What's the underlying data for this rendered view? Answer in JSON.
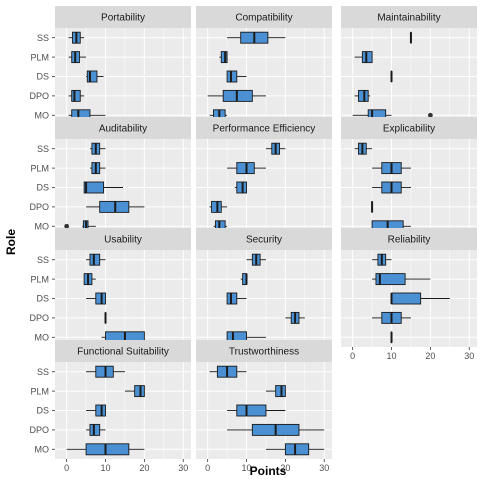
{
  "chart_data": {
    "type": "boxplot",
    "xlabel": "Points",
    "ylabel": "Role",
    "xlim": [
      -3,
      32
    ],
    "xticks": [
      "0",
      "10",
      "20",
      "30"
    ],
    "roles": [
      "SS",
      "PLM",
      "DS",
      "DPO",
      "MO"
    ],
    "colors": {
      "panel_bg": "#ebebeb",
      "strip_bg": "#d9d9d9",
      "grid": "#ffffff",
      "box_fill": "#4a90d2",
      "box_stroke": "#1a1a1a"
    },
    "facets": [
      {
        "name": "Portability",
        "boxes": [
          {
            "role": "SS",
            "min": 0.5,
            "q1": 1.5,
            "median": 2.5,
            "q3": 3.5,
            "max": 4.5,
            "outliers": []
          },
          {
            "role": "PLM",
            "min": 0.5,
            "q1": 1.3,
            "median": 2.2,
            "q3": 3.3,
            "max": 5.0,
            "outliers": []
          },
          {
            "role": "DS",
            "min": 5.0,
            "q1": 5.3,
            "median": 6.0,
            "q3": 7.8,
            "max": 9.5,
            "outliers": []
          },
          {
            "role": "DPO",
            "min": 0.5,
            "q1": 1.3,
            "median": 2.0,
            "q3": 3.5,
            "max": 4.5,
            "outliers": []
          },
          {
            "role": "MO",
            "min": 0.5,
            "q1": 1.3,
            "median": 3.0,
            "q3": 6.0,
            "max": 10.0,
            "outliers": []
          }
        ]
      },
      {
        "name": "Compatibility",
        "boxes": [
          {
            "role": "SS",
            "min": 5.0,
            "q1": 8.5,
            "median": 12.0,
            "q3": 15.5,
            "max": 20.0,
            "outliers": []
          },
          {
            "role": "PLM",
            "min": 3.0,
            "q1": 3.5,
            "median": 4.5,
            "q3": 5.0,
            "max": 5.0,
            "outliers": []
          },
          {
            "role": "DS",
            "min": 5.0,
            "q1": 5.0,
            "median": 6.0,
            "q3": 7.5,
            "max": 10.0,
            "outliers": []
          },
          {
            "role": "DPO",
            "min": 0.0,
            "q1": 4.0,
            "median": 7.5,
            "q3": 11.5,
            "max": 15.0,
            "outliers": []
          },
          {
            "role": "MO",
            "min": 0.5,
            "q1": 1.5,
            "median": 3.0,
            "q3": 4.5,
            "max": 5.0,
            "outliers": []
          }
        ]
      },
      {
        "name": "Maintainability",
        "boxes": [
          {
            "role": "SS",
            "min": 15.0,
            "q1": 15.0,
            "median": 15.0,
            "q3": 15.0,
            "max": 15.0,
            "outliers": []
          },
          {
            "role": "PLM",
            "min": 0.5,
            "q1": 2.5,
            "median": 3.5,
            "q3": 5.0,
            "max": 5.0,
            "outliers": []
          },
          {
            "role": "DS",
            "min": 10.0,
            "q1": 10.0,
            "median": 10.0,
            "q3": 10.0,
            "max": 10.0,
            "outliers": []
          },
          {
            "role": "DPO",
            "min": 0.5,
            "q1": 1.5,
            "median": 3.0,
            "q3": 4.0,
            "max": 4.5,
            "outliers": []
          },
          {
            "role": "MO",
            "min": 0.0,
            "q1": 4.0,
            "median": 5.0,
            "q3": 8.5,
            "max": 10.0,
            "outliers": [
              20
            ]
          }
        ]
      },
      {
        "name": "Auditability",
        "boxes": [
          {
            "role": "SS",
            "min": 6.0,
            "q1": 6.5,
            "median": 7.5,
            "q3": 8.5,
            "max": 10.0,
            "outliers": []
          },
          {
            "role": "PLM",
            "min": 6.0,
            "q1": 6.5,
            "median": 7.5,
            "q3": 8.5,
            "max": 10.0,
            "outliers": []
          },
          {
            "role": "DS",
            "min": 4.5,
            "q1": 4.5,
            "median": 5.0,
            "q3": 9.5,
            "max": 14.5,
            "outliers": []
          },
          {
            "role": "DPO",
            "min": 5.0,
            "q1": 8.5,
            "median": 12.5,
            "q3": 16.0,
            "max": 20.0,
            "outliers": []
          },
          {
            "role": "MO",
            "min": 4.0,
            "q1": 4.3,
            "median": 5.0,
            "q3": 5.5,
            "max": 7.5,
            "outliers": [
              0
            ]
          }
        ]
      },
      {
        "name": "Performance Efficiency",
        "boxes": [
          {
            "role": "SS",
            "min": 15.0,
            "q1": 16.5,
            "median": 17.5,
            "q3": 18.5,
            "max": 20.0,
            "outliers": []
          },
          {
            "role": "PLM",
            "min": 5.0,
            "q1": 7.5,
            "median": 10.0,
            "q3": 12.0,
            "max": 15.0,
            "outliers": []
          },
          {
            "role": "DS",
            "min": 7.0,
            "q1": 7.5,
            "median": 9.0,
            "q3": 10.0,
            "max": 10.0,
            "outliers": []
          },
          {
            "role": "DPO",
            "min": 0.5,
            "q1": 1.0,
            "median": 2.5,
            "q3": 3.5,
            "max": 5.0,
            "outliers": []
          },
          {
            "role": "MO",
            "min": 1.5,
            "q1": 2.0,
            "median": 3.0,
            "q3": 4.5,
            "max": 5.0,
            "outliers": []
          }
        ]
      },
      {
        "name": "Explicability",
        "boxes": [
          {
            "role": "SS",
            "min": 0.5,
            "q1": 1.5,
            "median": 2.5,
            "q3": 3.5,
            "max": 5.0,
            "outliers": []
          },
          {
            "role": "PLM",
            "min": 5.0,
            "q1": 7.5,
            "median": 10.0,
            "q3": 12.5,
            "max": 15.0,
            "outliers": []
          },
          {
            "role": "DS",
            "min": 5.0,
            "q1": 7.5,
            "median": 10.0,
            "q3": 12.5,
            "max": 15.0,
            "outliers": []
          },
          {
            "role": "DPO",
            "min": 5.0,
            "q1": 5.0,
            "median": 5.0,
            "q3": 5.0,
            "max": 5.0,
            "outliers": []
          },
          {
            "role": "MO",
            "min": 5.0,
            "q1": 5.0,
            "median": 9.0,
            "q3": 13.0,
            "max": 15.0,
            "outliers": []
          }
        ]
      },
      {
        "name": "Usability",
        "boxes": [
          {
            "role": "SS",
            "min": 5.0,
            "q1": 6.0,
            "median": 7.0,
            "q3": 8.5,
            "max": 10.0,
            "outliers": []
          },
          {
            "role": "PLM",
            "min": 4.5,
            "q1": 4.5,
            "median": 5.5,
            "q3": 6.5,
            "max": 7.5,
            "outliers": []
          },
          {
            "role": "DS",
            "min": 5.0,
            "q1": 7.5,
            "median": 9.0,
            "q3": 10.0,
            "max": 10.0,
            "outliers": []
          },
          {
            "role": "DPO",
            "min": 10.0,
            "q1": 10.0,
            "median": 10.0,
            "q3": 10.0,
            "max": 10.0,
            "outliers": []
          },
          {
            "role": "MO",
            "min": 9.0,
            "q1": 10.0,
            "median": 15.0,
            "q3": 20.0,
            "max": 20.0,
            "outliers": []
          }
        ]
      },
      {
        "name": "Security",
        "boxes": [
          {
            "role": "SS",
            "min": 10.0,
            "q1": 11.5,
            "median": 12.5,
            "q3": 13.5,
            "max": 15.0,
            "outliers": []
          },
          {
            "role": "PLM",
            "min": 8.5,
            "q1": 9.0,
            "median": 10.0,
            "q3": 10.0,
            "max": 10.0,
            "outliers": []
          },
          {
            "role": "DS",
            "min": 5.0,
            "q1": 5.0,
            "median": 6.0,
            "q3": 7.5,
            "max": 10.0,
            "outliers": []
          },
          {
            "role": "DPO",
            "min": 20.0,
            "q1": 21.5,
            "median": 22.5,
            "q3": 23.5,
            "max": 25.0,
            "outliers": []
          },
          {
            "role": "MO",
            "min": 5.0,
            "q1": 5.0,
            "median": 6.5,
            "q3": 10.0,
            "max": 15.0,
            "outliers": []
          }
        ]
      },
      {
        "name": "Reliability",
        "boxes": [
          {
            "role": "SS",
            "min": 5.0,
            "q1": 6.5,
            "median": 7.5,
            "q3": 8.5,
            "max": 10.0,
            "outliers": []
          },
          {
            "role": "PLM",
            "min": 5.0,
            "q1": 6.0,
            "median": 7.0,
            "q3": 13.5,
            "max": 20.0,
            "outliers": []
          },
          {
            "role": "DS",
            "min": 10.0,
            "q1": 10.0,
            "median": 10.0,
            "q3": 17.5,
            "max": 25.0,
            "outliers": []
          },
          {
            "role": "DPO",
            "min": 5.0,
            "q1": 7.5,
            "median": 10.0,
            "q3": 12.5,
            "max": 15.0,
            "outliers": []
          },
          {
            "role": "MO",
            "min": 10.0,
            "q1": 10.0,
            "median": 10.0,
            "q3": 10.0,
            "max": 10.0,
            "outliers": []
          }
        ]
      },
      {
        "name": "Functional Suitability",
        "boxes": [
          {
            "role": "SS",
            "min": 5.0,
            "q1": 7.5,
            "median": 10.0,
            "q3": 12.0,
            "max": 15.0,
            "outliers": []
          },
          {
            "role": "PLM",
            "min": 15.0,
            "q1": 17.5,
            "median": 19.0,
            "q3": 20.0,
            "max": 20.0,
            "outliers": []
          },
          {
            "role": "DS",
            "min": 5.0,
            "q1": 7.5,
            "median": 9.0,
            "q3": 10.0,
            "max": 10.0,
            "outliers": []
          },
          {
            "role": "DPO",
            "min": 5.0,
            "q1": 6.0,
            "median": 7.0,
            "q3": 8.5,
            "max": 10.0,
            "outliers": []
          },
          {
            "role": "MO",
            "min": 0.0,
            "q1": 5.0,
            "median": 10.0,
            "q3": 16.0,
            "max": 20.0,
            "outliers": []
          }
        ]
      },
      {
        "name": "Trustworthiness",
        "boxes": [
          {
            "role": "SS",
            "min": 0.5,
            "q1": 2.5,
            "median": 5.0,
            "q3": 7.5,
            "max": 10.0,
            "outliers": []
          },
          {
            "role": "PLM",
            "min": 15.0,
            "q1": 17.5,
            "median": 19.0,
            "q3": 20.0,
            "max": 20.0,
            "outliers": []
          },
          {
            "role": "DS",
            "min": 5.0,
            "q1": 7.5,
            "median": 10.0,
            "q3": 15.0,
            "max": 20.0,
            "outliers": []
          },
          {
            "role": "DPO",
            "min": 5.0,
            "q1": 11.5,
            "median": 17.5,
            "q3": 23.5,
            "max": 30.0,
            "outliers": []
          },
          {
            "role": "MO",
            "min": 15.0,
            "q1": 20.0,
            "median": 22.5,
            "q3": 26.0,
            "max": 30.0,
            "outliers": []
          }
        ]
      }
    ]
  }
}
